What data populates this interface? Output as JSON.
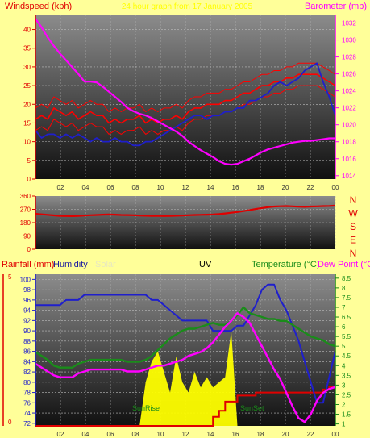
{
  "chart_data": [
    {
      "type": "line",
      "labels": {
        "left": "Windspeed (kph)",
        "subtitle": "24 hour graph from 17 January 2005",
        "right": "Barometer (mb)"
      },
      "x_ticks": [
        "02",
        "04",
        "06",
        "08",
        "10",
        "12",
        "14",
        "16",
        "18",
        "20",
        "22",
        "00"
      ],
      "y_left_ticks": [
        "0",
        "5",
        "10",
        "15",
        "20",
        "25",
        "30",
        "35",
        "40"
      ],
      "y_right_ticks": [
        "1014",
        "1016",
        "1018",
        "1020",
        "1022",
        "1024",
        "1026",
        "1028",
        "1030",
        "1032"
      ],
      "ylim_left": [
        0,
        44
      ],
      "ylim_right": [
        1013.6,
        1033
      ],
      "series": [
        {
          "color": "#ff0000",
          "axis": "left",
          "values": [
            16,
            17,
            16,
            19,
            18,
            17,
            18,
            16,
            17,
            18,
            17,
            17,
            15,
            16,
            15,
            16,
            16,
            17,
            15,
            16,
            15,
            16,
            16,
            17,
            16,
            18,
            19,
            19,
            20,
            20,
            20,
            21,
            21,
            22,
            23,
            23,
            24,
            25,
            25,
            26,
            26,
            27,
            27,
            28,
            28,
            28,
            28,
            27,
            26,
            25
          ]
        },
        {
          "color": "#1f1fcc",
          "axis": "left",
          "values": [
            13,
            11,
            12,
            12,
            11,
            12,
            11,
            12,
            11,
            10,
            11,
            10,
            10,
            11,
            10,
            10,
            9,
            9,
            10,
            10,
            11,
            12,
            13,
            14,
            15,
            16,
            17,
            17,
            16,
            17,
            17,
            18,
            18,
            19,
            19,
            21,
            21,
            22,
            23,
            25,
            26,
            25,
            26,
            27,
            29,
            30,
            31,
            26,
            22,
            17
          ]
        },
        {
          "color": "#ff00ff",
          "axis": "right",
          "values": [
            1032.5,
            1031.5,
            1030.3,
            1029.3,
            1028.4,
            1027.6,
            1026.8,
            1026.0,
            1025.1,
            1025.1,
            1025.0,
            1024.5,
            1023.9,
            1023.3,
            1022.7,
            1022.0,
            1021.6,
            1021.3,
            1021.1,
            1020.8,
            1020.4,
            1020.0,
            1019.6,
            1019.2,
            1018.7,
            1018.0,
            1017.5,
            1017.0,
            1016.6,
            1016.2,
            1015.7,
            1015.4,
            1015.3,
            1015.4,
            1015.7,
            1016.0,
            1016.4,
            1016.8,
            1017.1,
            1017.3,
            1017.5,
            1017.7,
            1017.9,
            1018.0,
            1018.1,
            1018.1,
            1018.2,
            1018.3,
            1018.4,
            1018.4
          ]
        }
      ]
    },
    {
      "type": "line",
      "y_left_ticks": [
        "0",
        "90",
        "180",
        "270",
        "360"
      ],
      "right_labels": [
        "N",
        "W",
        "S",
        "E",
        "N"
      ],
      "ylim": [
        0,
        360
      ],
      "series": [
        {
          "color": "#e00000",
          "values": [
            240,
            236,
            233,
            229,
            226,
            225,
            224,
            226,
            228,
            230,
            232,
            234,
            235,
            234,
            232,
            231,
            230,
            228,
            227,
            226,
            226,
            225,
            226,
            227,
            228,
            230,
            232,
            233,
            234,
            235,
            238,
            242,
            247,
            252,
            258,
            265,
            272,
            279,
            285,
            289,
            291,
            292,
            290,
            288,
            287,
            289,
            290,
            292,
            293,
            295
          ]
        }
      ]
    },
    {
      "type": "line",
      "labels": {
        "rain": "Rainfall (mm)",
        "humidity": "Humidity",
        "solar": "Solar",
        "uv": "UV",
        "temperature": "Temperature (°C)",
        "dewpoint": "Dew Point (°C)",
        "sunrise": "SunRise",
        "sunset": "SunSet"
      },
      "y_humidity_ticks": [
        "72",
        "74",
        "76",
        "78",
        "80",
        "82",
        "84",
        "86",
        "88",
        "90",
        "92",
        "94",
        "96",
        "98",
        "100"
      ],
      "y_rain_ticks": [
        "0",
        "5"
      ],
      "y_temp_ticks": [
        "1",
        "1.5",
        "2",
        "2.5",
        "3",
        "3.5",
        "4",
        "4.5",
        "5",
        "5.5",
        "6",
        "6.5",
        "7",
        "7.5",
        "8",
        "8.5"
      ],
      "ylim_humidity": [
        71.5,
        101
      ],
      "ylim_temp": [
        0.9,
        8.7
      ],
      "series": [
        {
          "name": "Humidity",
          "color": "#1f1fcc",
          "axis": "humidity",
          "values": [
            95,
            95,
            95,
            95,
            95,
            96,
            96,
            96,
            97,
            97,
            97,
            97,
            97,
            97,
            97,
            97,
            97,
            97,
            97,
            96,
            96,
            95,
            94,
            93,
            92,
            92,
            92,
            92,
            92,
            90,
            90,
            90,
            90,
            91,
            91,
            93,
            95,
            98,
            99,
            99,
            96,
            94,
            91,
            88,
            84,
            80,
            76,
            76,
            81,
            86
          ]
        },
        {
          "name": "Temperature",
          "color": "#1a8c1a",
          "axis": "temp",
          "values": [
            4.7,
            4.5,
            4.3,
            4.0,
            3.9,
            3.9,
            3.9,
            4.1,
            4.2,
            4.3,
            4.3,
            4.3,
            4.3,
            4.3,
            4.3,
            4.2,
            4.2,
            4.2,
            4.3,
            4.5,
            4.8,
            5.1,
            5.4,
            5.6,
            5.8,
            5.9,
            5.9,
            6.0,
            6.1,
            6.2,
            6.1,
            6.1,
            6.3,
            6.6,
            7.0,
            6.7,
            6.6,
            6.5,
            6.4,
            6.4,
            6.3,
            6.3,
            6.1,
            5.9,
            5.7,
            5.5,
            5.4,
            5.3,
            5.1,
            5.0
          ]
        },
        {
          "name": "Dew Point",
          "color": "#ff00ff",
          "axis": "temp",
          "values": [
            4.1,
            3.9,
            3.7,
            3.5,
            3.4,
            3.4,
            3.4,
            3.6,
            3.7,
            3.8,
            3.8,
            3.8,
            3.8,
            3.8,
            3.8,
            3.7,
            3.7,
            3.7,
            3.8,
            3.9,
            4.0,
            4.0,
            4.1,
            4.2,
            4.3,
            4.5,
            4.6,
            4.7,
            4.9,
            5.2,
            5.6,
            6.0,
            6.3,
            6.7,
            6.5,
            6.2,
            5.6,
            5.0,
            4.4,
            3.8,
            3.3,
            2.6,
            1.9,
            1.3,
            1.1,
            1.5,
            2.2,
            2.6,
            2.8,
            2.9
          ]
        },
        {
          "name": "Rainfall",
          "color": "#e00000",
          "axis": "rain",
          "values": [
            0,
            0,
            0,
            0,
            0,
            0,
            0,
            0,
            0,
            0,
            0,
            0,
            0,
            0,
            0,
            0,
            0,
            0,
            0,
            0,
            0,
            0,
            0,
            0,
            0,
            0,
            0,
            0,
            0,
            0.3,
            0.5,
            0.8,
            0.8,
            1.0,
            1.0,
            1.0,
            1.1,
            1.1,
            1.1,
            1.1,
            1.1,
            1.1,
            1.1,
            1.1,
            1.1,
            1.1,
            1.1,
            1.2,
            1.3,
            1.3
          ]
        },
        {
          "name": "Solar",
          "color": "#ffff00",
          "axis": "humidity",
          "values": [
            0,
            0,
            0,
            0,
            0,
            0,
            0,
            0,
            0,
            0,
            0,
            0,
            0,
            0,
            0,
            0,
            0,
            0,
            80,
            84,
            86,
            82,
            78,
            85,
            80,
            78,
            82,
            79,
            81,
            79,
            80,
            81,
            90,
            0,
            0,
            0,
            0,
            0,
            0,
            0,
            0,
            0,
            0,
            0,
            0,
            0,
            0,
            0,
            0,
            0
          ]
        }
      ]
    }
  ]
}
